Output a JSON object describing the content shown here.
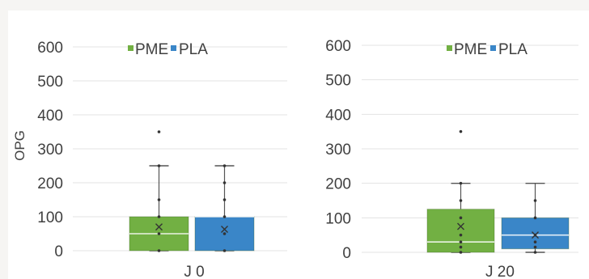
{
  "colors": {
    "PME": "#72b043",
    "PLA": "#3a86c8",
    "whisker": "#555555",
    "grid": "#e3e3e3",
    "text": "#404040"
  },
  "chart_data": [
    {
      "type": "box",
      "title": "",
      "ylabel": "OPG",
      "xlabel": "",
      "ylim": [
        0,
        600
      ],
      "yticks": [
        0,
        100,
        200,
        300,
        400,
        500,
        600
      ],
      "grid": true,
      "legend_position": "top",
      "category": "J 0",
      "series": [
        {
          "name": "PME",
          "min": 0,
          "q1": 0,
          "median": 50,
          "q3": 100,
          "max": 250,
          "mean": 70,
          "points": [
            0,
            50,
            100,
            150,
            250,
            350
          ]
        },
        {
          "name": "PLA",
          "min": 0,
          "q1": 0,
          "median": 100,
          "q3": 100,
          "max": 250,
          "mean": 63,
          "points": [
            0,
            50,
            100,
            150,
            200,
            250
          ]
        }
      ]
    },
    {
      "type": "box",
      "title": "",
      "ylabel": "",
      "xlabel": "",
      "ylim": [
        0,
        600
      ],
      "yticks": [
        0,
        100,
        200,
        300,
        400,
        500,
        600
      ],
      "grid": true,
      "legend_position": "top",
      "category": "J 20",
      "series": [
        {
          "name": "PME",
          "min": 0,
          "q1": 0,
          "median": 30,
          "q3": 125,
          "max": 200,
          "mean": 75,
          "points": [
            0,
            15,
            30,
            50,
            100,
            150,
            200,
            350
          ]
        },
        {
          "name": "PLA",
          "min": 0,
          "q1": 10,
          "median": 50,
          "q3": 100,
          "max": 200,
          "mean": 50,
          "points": [
            0,
            15,
            30,
            50,
            100,
            150
          ]
        }
      ]
    }
  ]
}
